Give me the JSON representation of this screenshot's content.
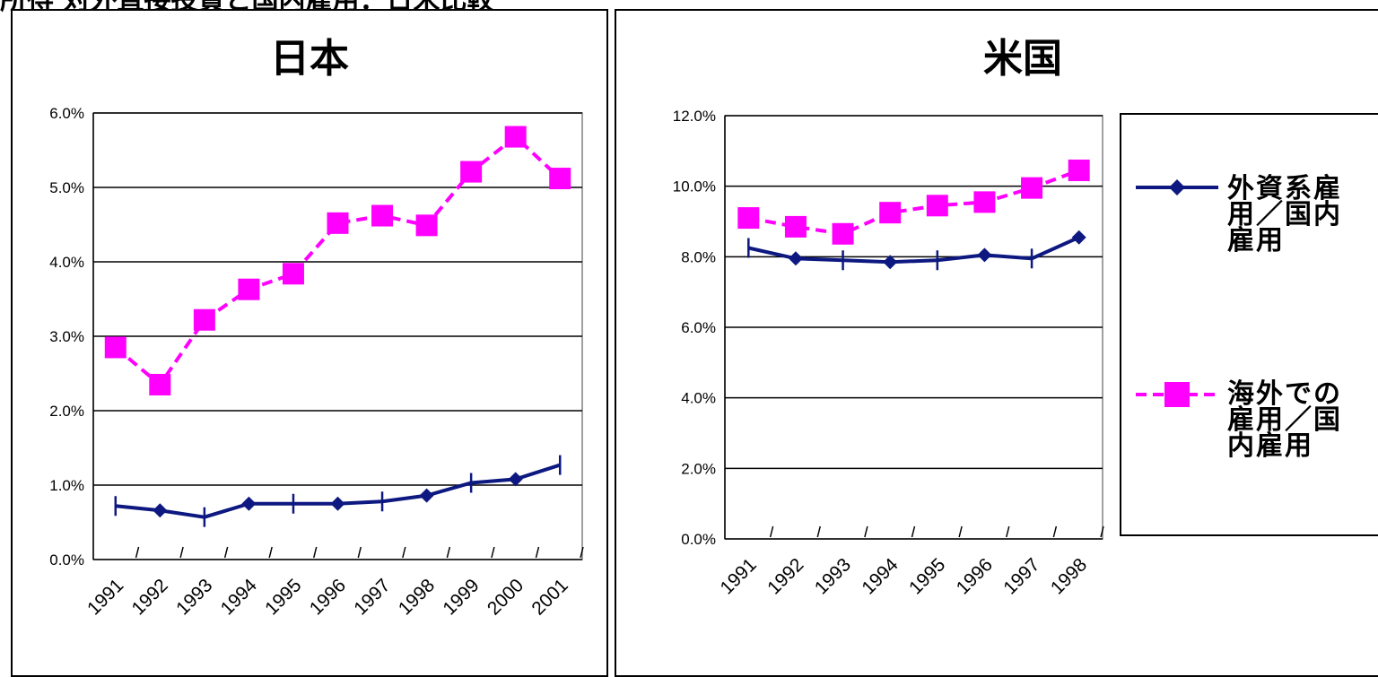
{
  "header": {
    "title": "所得 対外直接投資と国内雇用：日米比較"
  },
  "colors": {
    "navy": "#0d1880",
    "magenta": "#ff00ff"
  },
  "legend": {
    "items": [
      {
        "label": "外資系雇用／国内雇用",
        "lines": [
          "外資系雇",
          "用／国内",
          "雇用"
        ],
        "color": "#0d1880",
        "marker": "diamond",
        "style": "solid"
      },
      {
        "label": "海外での雇用／国内雇用",
        "lines": [
          "海外での",
          "雇用／国",
          "内雇用"
        ],
        "color": "#ff00ff",
        "marker": "square",
        "style": "dashed"
      }
    ]
  },
  "chart_data": [
    {
      "type": "line",
      "title": "日本",
      "categories": [
        "1991",
        "1992",
        "1993",
        "1994",
        "1995",
        "1996",
        "1997",
        "1998",
        "1999",
        "2000",
        "2001"
      ],
      "ylim": [
        0,
        0.06
      ],
      "yticks": [
        "0.0%",
        "1.0%",
        "2.0%",
        "3.0%",
        "4.0%",
        "5.0%",
        "6.0%"
      ],
      "grid": true,
      "series": [
        {
          "name": "外資系雇用／国内雇用",
          "marker": "diamond",
          "color": "#0d1880",
          "values": [
            0.0072,
            0.0066,
            0.0057,
            0.0075,
            0.0075,
            0.0075,
            0.0078,
            0.0086,
            0.0103,
            0.0108,
            0.0127
          ]
        },
        {
          "name": "海外での雇用／国内雇用",
          "marker": "square",
          "color": "#ff00ff",
          "values": [
            0.0285,
            0.0235,
            0.0322,
            0.0363,
            0.0384,
            0.0452,
            0.0462,
            0.0449,
            0.0521,
            0.0568,
            0.0512
          ]
        }
      ]
    },
    {
      "type": "line",
      "title": "米国",
      "categories": [
        "1991",
        "1992",
        "1993",
        "1994",
        "1995",
        "1996",
        "1997",
        "1998"
      ],
      "ylim": [
        0,
        0.12
      ],
      "yticks": [
        "0.0%",
        "2.0%",
        "4.0%",
        "6.0%",
        "8.0%",
        "10.0%",
        "12.0%"
      ],
      "grid": true,
      "series": [
        {
          "name": "外資系雇用／国内雇用",
          "marker": "diamond",
          "color": "#0d1880",
          "values": [
            0.0825,
            0.0795,
            0.079,
            0.0785,
            0.079,
            0.0805,
            0.0795,
            0.0855
          ]
        },
        {
          "name": "海外での雇用／国内雇用",
          "marker": "square",
          "color": "#ff00ff",
          "values": [
            0.091,
            0.0885,
            0.0865,
            0.0925,
            0.0945,
            0.0955,
            0.0995,
            0.1045
          ]
        }
      ]
    }
  ]
}
